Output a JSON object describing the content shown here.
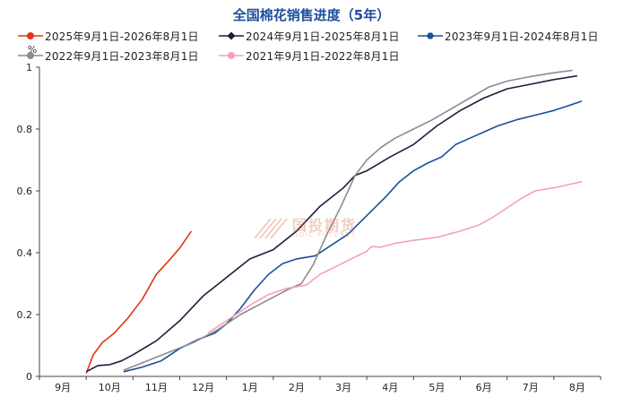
{
  "chart_data": {
    "type": "line",
    "title": "全国棉花销售进度（5年）",
    "ylabel": "%",
    "ylim": [
      0,
      1
    ],
    "yticks": [
      "0",
      "0.2",
      "0.4",
      "0.6",
      "0.8",
      "1"
    ],
    "xticks": [
      "9月",
      "10月",
      "11月",
      "12月",
      "1月",
      "2月",
      "3月",
      "4月",
      "5月",
      "6月",
      "7月",
      "8月"
    ],
    "x_unit": "months from 9月 start",
    "series": [
      {
        "name": "2025年9月1日-2026年8月1日",
        "color": "#e63312",
        "marker": "circle",
        "points": [
          [
            1.0,
            0.01
          ],
          [
            1.15,
            0.07
          ],
          [
            1.35,
            0.11
          ],
          [
            1.6,
            0.14
          ],
          [
            1.9,
            0.19
          ],
          [
            2.2,
            0.25
          ],
          [
            2.5,
            0.33
          ],
          [
            2.8,
            0.38
          ],
          [
            3.0,
            0.415
          ],
          [
            3.25,
            0.47
          ]
        ]
      },
      {
        "name": "2024年9月1日-2025年8月1日",
        "color": "#1a1f3c",
        "marker": "diamond",
        "points": [
          [
            1.0,
            0.015
          ],
          [
            1.25,
            0.035
          ],
          [
            1.5,
            0.038
          ],
          [
            1.75,
            0.05
          ],
          [
            2.0,
            0.07
          ],
          [
            2.5,
            0.115
          ],
          [
            3.0,
            0.18
          ],
          [
            3.5,
            0.26
          ],
          [
            4.0,
            0.32
          ],
          [
            4.25,
            0.35
          ],
          [
            4.5,
            0.38
          ],
          [
            5.0,
            0.41
          ],
          [
            5.5,
            0.47
          ],
          [
            6.0,
            0.55
          ],
          [
            6.5,
            0.61
          ],
          [
            6.75,
            0.65
          ],
          [
            7.0,
            0.665
          ],
          [
            7.5,
            0.71
          ],
          [
            8.0,
            0.75
          ],
          [
            8.5,
            0.81
          ],
          [
            9.0,
            0.86
          ],
          [
            9.5,
            0.9
          ],
          [
            10.0,
            0.93
          ],
          [
            10.5,
            0.945
          ],
          [
            11.0,
            0.96
          ],
          [
            11.5,
            0.972
          ]
        ]
      },
      {
        "name": "2023年9月1日-2024年8月1日",
        "color": "#1b4f9c",
        "marker": "hexagon",
        "points": [
          [
            1.8,
            0.015
          ],
          [
            2.2,
            0.03
          ],
          [
            2.6,
            0.05
          ],
          [
            3.0,
            0.09
          ],
          [
            3.4,
            0.12
          ],
          [
            3.75,
            0.14
          ],
          [
            4.0,
            0.17
          ],
          [
            4.3,
            0.22
          ],
          [
            4.6,
            0.28
          ],
          [
            4.9,
            0.33
          ],
          [
            5.2,
            0.365
          ],
          [
            5.5,
            0.38
          ],
          [
            5.9,
            0.39
          ],
          [
            6.2,
            0.42
          ],
          [
            6.6,
            0.46
          ],
          [
            7.0,
            0.52
          ],
          [
            7.4,
            0.58
          ],
          [
            7.7,
            0.63
          ],
          [
            8.0,
            0.665
          ],
          [
            8.3,
            0.69
          ],
          [
            8.6,
            0.71
          ],
          [
            8.9,
            0.75
          ],
          [
            9.2,
            0.77
          ],
          [
            9.5,
            0.79
          ],
          [
            9.8,
            0.81
          ],
          [
            10.2,
            0.83
          ],
          [
            10.6,
            0.845
          ],
          [
            11.0,
            0.86
          ],
          [
            11.3,
            0.875
          ],
          [
            11.6,
            0.89
          ]
        ]
      },
      {
        "name": "2022年9月1日-2023年8月1日",
        "color": "#8c8c8c",
        "marker": "circle",
        "points": [
          [
            1.8,
            0.02
          ],
          [
            2.3,
            0.05
          ],
          [
            2.8,
            0.08
          ],
          [
            3.3,
            0.11
          ],
          [
            3.8,
            0.15
          ],
          [
            4.3,
            0.2
          ],
          [
            4.8,
            0.24
          ],
          [
            5.3,
            0.28
          ],
          [
            5.6,
            0.3
          ],
          [
            5.85,
            0.36
          ],
          [
            6.15,
            0.46
          ],
          [
            6.45,
            0.55
          ],
          [
            6.75,
            0.65
          ],
          [
            7.0,
            0.7
          ],
          [
            7.3,
            0.74
          ],
          [
            7.6,
            0.77
          ],
          [
            8.0,
            0.8
          ],
          [
            8.4,
            0.83
          ],
          [
            8.8,
            0.865
          ],
          [
            9.2,
            0.9
          ],
          [
            9.6,
            0.935
          ],
          [
            10.0,
            0.955
          ],
          [
            10.5,
            0.97
          ],
          [
            11.0,
            0.982
          ],
          [
            11.4,
            0.99
          ]
        ]
      },
      {
        "name": "2021年9月1日-2022年8月1日",
        "color": "#f2a2b8",
        "marker": "circle",
        "points": [
          [
            3.6,
            0.14
          ],
          [
            4.0,
            0.18
          ],
          [
            4.5,
            0.23
          ],
          [
            4.9,
            0.265
          ],
          [
            5.3,
            0.285
          ],
          [
            5.7,
            0.295
          ],
          [
            6.0,
            0.33
          ],
          [
            6.4,
            0.36
          ],
          [
            6.8,
            0.39
          ],
          [
            7.0,
            0.405
          ],
          [
            7.1,
            0.42
          ],
          [
            7.3,
            0.418
          ],
          [
            7.6,
            0.43
          ],
          [
            8.0,
            0.44
          ],
          [
            8.5,
            0.45
          ],
          [
            9.0,
            0.47
          ],
          [
            9.4,
            0.49
          ],
          [
            9.7,
            0.515
          ],
          [
            10.0,
            0.545
          ],
          [
            10.3,
            0.575
          ],
          [
            10.6,
            0.6
          ],
          [
            11.0,
            0.61
          ],
          [
            11.6,
            0.63
          ]
        ]
      }
    ]
  },
  "watermark": {
    "text": "国投期货",
    "sub": "SDIC FUTURES"
  }
}
